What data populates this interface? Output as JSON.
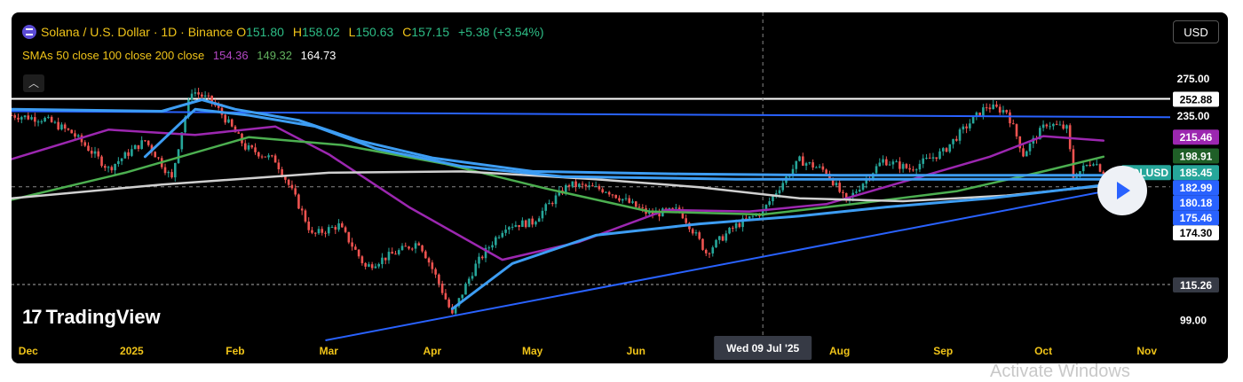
{
  "header": {
    "title": "Solana / U.S. Dollar · 1D · Binance",
    "o_label": "O",
    "o_value": "151.80",
    "h_label": "H",
    "h_value": "158.02",
    "l_label": "L",
    "l_value": "150.63",
    "c_label": "C",
    "c_value": "157.15",
    "change": "+5.38 (+3.54%)"
  },
  "sma": {
    "label": "SMAs 50 close 100 close 200 close",
    "v50": "154.36",
    "v100": "149.32",
    "v200": "164.73"
  },
  "currency_button": "USD",
  "brand": {
    "mark": "17",
    "name": "TradingView"
  },
  "crosshair_date": "Wed 09 Jul '25",
  "watermark": "Activate Windows",
  "colors": {
    "bull": "#26a69a",
    "bear": "#ef5350",
    "sma50": "#9c27b0",
    "sma100": "#4caf50",
    "sma200": "#d0d0d0",
    "trend": "#2962ff",
    "band": "#3d9df3"
  },
  "chart_data": {
    "type": "candlestick",
    "symbol": "SOLUSD",
    "interval": "1D",
    "x_range": [
      "2024-11-26",
      "2025-11-08"
    ],
    "y_axis": {
      "scale": "log",
      "range": [
        91,
        300
      ]
    },
    "y_ticks": [
      {
        "value": 275.0,
        "label": "275.00",
        "kind": "plain"
      },
      {
        "value": 235.0,
        "label": "235.00",
        "kind": "plain"
      },
      {
        "value": 99.0,
        "label": "99.00",
        "kind": "plain"
      }
    ],
    "price_tags": [
      {
        "value": 252.88,
        "label": "252.88",
        "bg": "#ffffff",
        "fg": "#000000"
      },
      {
        "value": 215.46,
        "label": "215.46",
        "bg": "#9c27b0",
        "fg": "#ffffff"
      },
      {
        "value": 198.91,
        "label": "198.91",
        "bg": "#1f5f27",
        "fg": "#ffffff"
      },
      {
        "value": 185.45,
        "label": "185.45",
        "bg": "#26a69a",
        "fg": "#ffffff",
        "name": "SOLUSD"
      },
      {
        "value": 182.99,
        "label": "182.99",
        "bg": "#2962ff",
        "fg": "#ffffff"
      },
      {
        "value": 180.18,
        "label": "180.18",
        "bg": "#2962ff",
        "fg": "#ffffff"
      },
      {
        "value": 175.46,
        "label": "175.46",
        "bg": "#2962ff",
        "fg": "#ffffff"
      },
      {
        "value": 174.3,
        "label": "174.30",
        "bg": "#ffffff",
        "fg": "#000000"
      },
      {
        "value": 115.26,
        "label": "115.26",
        "bg": "#363a45",
        "fg": "#ffffff"
      }
    ],
    "x_ticks": [
      {
        "date": "2024-12-01",
        "label": "Dec"
      },
      {
        "date": "2025-01-01",
        "label": "2025"
      },
      {
        "date": "2025-02-01",
        "label": "Feb"
      },
      {
        "date": "2025-03-01",
        "label": "Mar"
      },
      {
        "date": "2025-04-01",
        "label": "Apr"
      },
      {
        "date": "2025-05-01",
        "label": "May"
      },
      {
        "date": "2025-06-01",
        "label": "Jun"
      },
      {
        "date": "2025-08-01",
        "label": "Aug"
      },
      {
        "date": "2025-09-01",
        "label": "Sep"
      },
      {
        "date": "2025-10-01",
        "label": "Oct"
      },
      {
        "date": "2025-11-01",
        "label": "Nov"
      }
    ],
    "crosshair": {
      "date": "2025-07-09",
      "price": 174.3
    },
    "horizontal_lines": [
      {
        "price": 252.88,
        "style": "solid",
        "color": "#ffffff"
      },
      {
        "price": 115.26,
        "style": "dashed",
        "color": "#aaaaaa"
      }
    ],
    "trend_lines": [
      {
        "from": {
          "date": "2024-11-26",
          "price": 240
        },
        "to": {
          "date": "2025-11-08",
          "price": 234
        },
        "color": "#2962ff"
      },
      {
        "from": {
          "date": "2025-02-28",
          "price": 91
        },
        "to": {
          "date": "2025-10-28",
          "price": 175
        },
        "color": "#2962ff"
      }
    ],
    "price_path": [
      {
        "date": "2024-11-26",
        "price": 236
      },
      {
        "date": "2024-12-06",
        "price": 232
      },
      {
        "date": "2024-12-14",
        "price": 219
      },
      {
        "date": "2024-12-25",
        "price": 188
      },
      {
        "date": "2025-01-05",
        "price": 212
      },
      {
        "date": "2025-01-13",
        "price": 180
      },
      {
        "date": "2025-01-19",
        "price": 262
      },
      {
        "date": "2025-01-25",
        "price": 250
      },
      {
        "date": "2025-02-04",
        "price": 206
      },
      {
        "date": "2025-02-13",
        "price": 195
      },
      {
        "date": "2025-02-24",
        "price": 142
      },
      {
        "date": "2025-03-04",
        "price": 148
      },
      {
        "date": "2025-03-12",
        "price": 124
      },
      {
        "date": "2025-03-20",
        "price": 131
      },
      {
        "date": "2025-03-28",
        "price": 138
      },
      {
        "date": "2025-04-07",
        "price": 101
      },
      {
        "date": "2025-04-14",
        "price": 125
      },
      {
        "date": "2025-04-23",
        "price": 148
      },
      {
        "date": "2025-05-01",
        "price": 150
      },
      {
        "date": "2025-05-12",
        "price": 176
      },
      {
        "date": "2025-05-23",
        "price": 172
      },
      {
        "date": "2025-06-05",
        "price": 155
      },
      {
        "date": "2025-06-14",
        "price": 158
      },
      {
        "date": "2025-06-22",
        "price": 132
      },
      {
        "date": "2025-07-01",
        "price": 148
      },
      {
        "date": "2025-07-09",
        "price": 157
      },
      {
        "date": "2025-07-20",
        "price": 195
      },
      {
        "date": "2025-07-28",
        "price": 186
      },
      {
        "date": "2025-08-03",
        "price": 163
      },
      {
        "date": "2025-08-14",
        "price": 195
      },
      {
        "date": "2025-08-22",
        "price": 188
      },
      {
        "date": "2025-09-01",
        "price": 202
      },
      {
        "date": "2025-09-14",
        "price": 245
      },
      {
        "date": "2025-09-20",
        "price": 240
      },
      {
        "date": "2025-09-25",
        "price": 200
      },
      {
        "date": "2025-10-02",
        "price": 228
      },
      {
        "date": "2025-10-08",
        "price": 223
      },
      {
        "date": "2025-10-10",
        "price": 182
      },
      {
        "date": "2025-10-16",
        "price": 195
      },
      {
        "date": "2025-10-19",
        "price": 185
      }
    ],
    "series": [
      {
        "name": "SMA 50",
        "color": "#9c27b0",
        "points": [
          {
            "date": "2024-11-26",
            "price": 196
          },
          {
            "date": "2024-12-25",
            "price": 222
          },
          {
            "date": "2025-01-20",
            "price": 217
          },
          {
            "date": "2025-02-13",
            "price": 225
          },
          {
            "date": "2025-03-01",
            "price": 200
          },
          {
            "date": "2025-03-25",
            "price": 160
          },
          {
            "date": "2025-04-22",
            "price": 128
          },
          {
            "date": "2025-05-15",
            "price": 138
          },
          {
            "date": "2025-06-10",
            "price": 158
          },
          {
            "date": "2025-07-05",
            "price": 157
          },
          {
            "date": "2025-07-28",
            "price": 162
          },
          {
            "date": "2025-08-20",
            "price": 178
          },
          {
            "date": "2025-09-15",
            "price": 198
          },
          {
            "date": "2025-10-01",
            "price": 216
          },
          {
            "date": "2025-10-19",
            "price": 212
          }
        ]
      },
      {
        "name": "SMA 100",
        "color": "#4caf50",
        "points": [
          {
            "date": "2024-11-26",
            "price": 165
          },
          {
            "date": "2024-12-30",
            "price": 185
          },
          {
            "date": "2025-02-05",
            "price": 215
          },
          {
            "date": "2025-03-05",
            "price": 208
          },
          {
            "date": "2025-04-05",
            "price": 192
          },
          {
            "date": "2025-05-05",
            "price": 173
          },
          {
            "date": "2025-06-05",
            "price": 157
          },
          {
            "date": "2025-07-09",
            "price": 155
          },
          {
            "date": "2025-08-05",
            "price": 162
          },
          {
            "date": "2025-09-05",
            "price": 171
          },
          {
            "date": "2025-10-01",
            "price": 186
          },
          {
            "date": "2025-10-19",
            "price": 198
          }
        ]
      },
      {
        "name": "SMA 200",
        "color": "#d0d0d0",
        "points": [
          {
            "date": "2024-11-26",
            "price": 166
          },
          {
            "date": "2025-01-10",
            "price": 176
          },
          {
            "date": "2025-03-01",
            "price": 185
          },
          {
            "date": "2025-04-10",
            "price": 186
          },
          {
            "date": "2025-05-20",
            "price": 180
          },
          {
            "date": "2025-06-20",
            "price": 174
          },
          {
            "date": "2025-07-20",
            "price": 166
          },
          {
            "date": "2025-08-20",
            "price": 164
          },
          {
            "date": "2025-09-20",
            "price": 168
          },
          {
            "date": "2025-10-19",
            "price": 175
          }
        ]
      },
      {
        "name": "",
        "color": "#3d9df3",
        "points": [
          {
            "date": "2024-11-26",
            "price": 242
          },
          {
            "date": "2025-01-10",
            "price": 240
          },
          {
            "date": "2025-01-22",
            "price": 252
          },
          {
            "date": "2025-02-01",
            "price": 242
          },
          {
            "date": "2025-02-20",
            "price": 231
          },
          {
            "date": "2025-03-10",
            "price": 212
          },
          {
            "date": "2025-04-01",
            "price": 197
          },
          {
            "date": "2025-05-01",
            "price": 186
          },
          {
            "date": "2025-06-15",
            "price": 184
          },
          {
            "date": "2025-08-01",
            "price": 183
          },
          {
            "date": "2025-09-01",
            "price": 183
          },
          {
            "date": "2025-10-19",
            "price": 183
          }
        ]
      },
      {
        "name": "",
        "color": "#3d9df3",
        "points": [
          {
            "date": "2025-01-05",
            "price": 198
          },
          {
            "date": "2025-01-20",
            "price": 242
          },
          {
            "date": "2025-02-05",
            "price": 236
          },
          {
            "date": "2025-02-25",
            "price": 225
          },
          {
            "date": "2025-03-15",
            "price": 205
          },
          {
            "date": "2025-04-10",
            "price": 190
          },
          {
            "date": "2025-05-10",
            "price": 182
          },
          {
            "date": "2025-07-01",
            "price": 180
          },
          {
            "date": "2025-09-01",
            "price": 180
          },
          {
            "date": "2025-10-19",
            "price": 180
          }
        ]
      },
      {
        "name": "",
        "color": "#3d9df3",
        "points": [
          {
            "date": "2025-04-07",
            "price": 104
          },
          {
            "date": "2025-04-25",
            "price": 126
          },
          {
            "date": "2025-05-20",
            "price": 142
          },
          {
            "date": "2025-06-20",
            "price": 149
          },
          {
            "date": "2025-07-20",
            "price": 154
          },
          {
            "date": "2025-08-15",
            "price": 160
          },
          {
            "date": "2025-09-15",
            "price": 166
          },
          {
            "date": "2025-10-19",
            "price": 175.5
          }
        ]
      }
    ]
  }
}
